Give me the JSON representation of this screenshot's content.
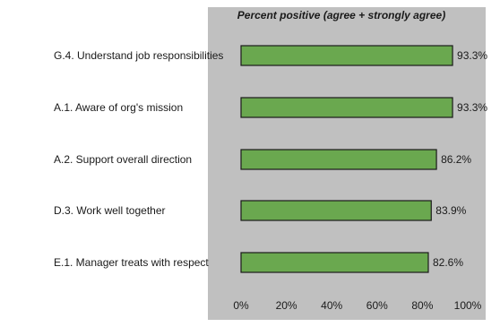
{
  "chart_data": {
    "type": "bar",
    "orientation": "horizontal",
    "title": "Percent positive (agree + strongly agree)",
    "categories": [
      "G.4. Understand job responsibilities",
      "A.1. Aware of org's mission",
      "A.2. Support overall direction",
      "D.3. Work well together",
      "E.1. Manager treats with respect"
    ],
    "values": [
      93.3,
      93.3,
      86.2,
      83.9,
      82.6
    ],
    "value_labels": [
      "93.3%",
      "93.3%",
      "86.2%",
      "83.9%",
      "82.6%"
    ],
    "xlim": [
      0,
      100
    ],
    "x_ticks": [
      0,
      20,
      40,
      60,
      80,
      100
    ],
    "x_tick_labels": [
      "0%",
      "20%",
      "40%",
      "60%",
      "80%",
      "100%"
    ],
    "grid": false,
    "legend": "none",
    "colors": {
      "bar": "#6aa84f",
      "bar_border": "#1a1a1a",
      "plot_background": "#c0c0c0",
      "text": "#1a1a1a"
    }
  }
}
